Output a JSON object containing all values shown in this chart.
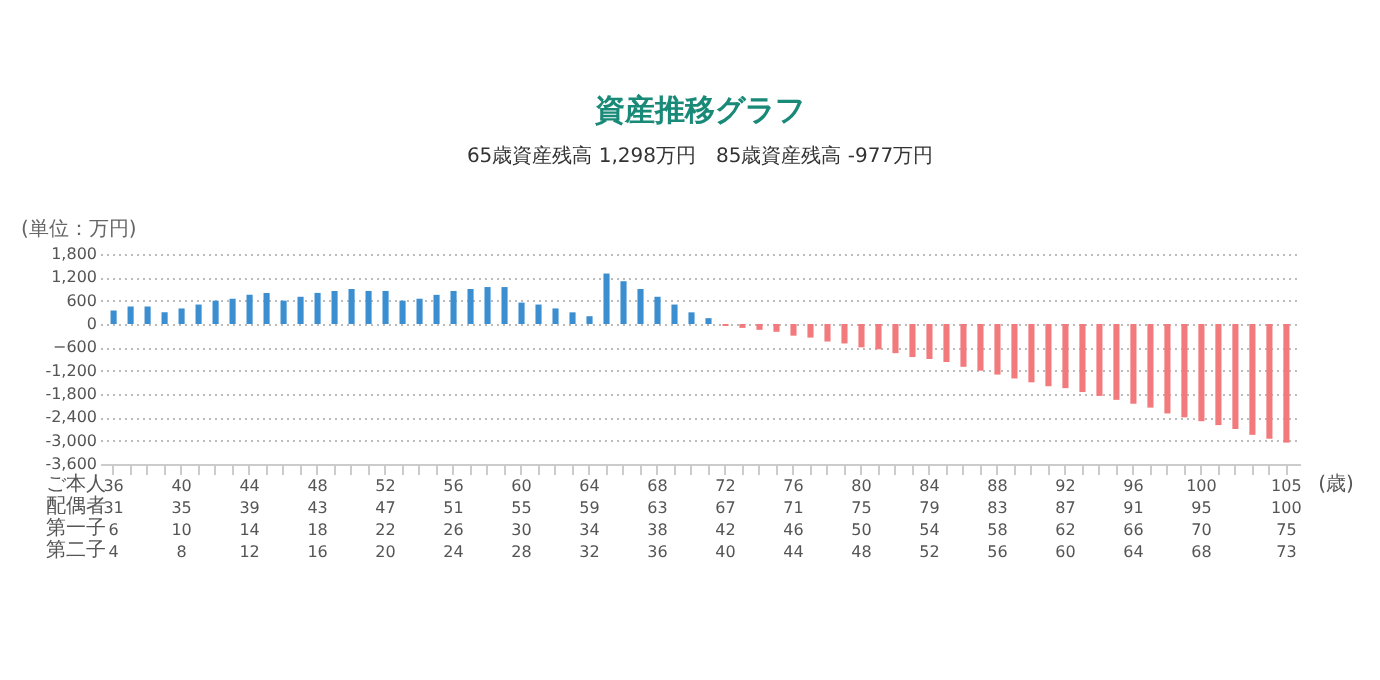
{
  "chart_data": {
    "type": "bar",
    "title": "資産推移グラフ",
    "subtitle": "65歳資産残高 1,298万円　85歳資産残高 -977万円",
    "ylabel": "(単位：万円)",
    "annotations": [
      "ご本人",
      "配偶者",
      "第一子",
      "第二子",
      "(歳)"
    ],
    "categories": [
      "36\n31\n6\n4",
      null,
      null,
      null,
      "40\n35\n10\n8",
      null,
      null,
      null,
      "44\n39\n14\n12",
      null,
      null,
      null,
      "48\n43\n18\n16",
      null,
      null,
      null,
      "52\n47\n22\n20",
      null,
      null,
      null,
      "56\n51\n26\n24",
      null,
      null,
      null,
      "60\n55\n30\n28",
      null,
      null,
      null,
      "64\n59\n34\n32",
      null,
      null,
      null,
      "68\n63\n38\n36",
      null,
      null,
      null,
      "72\n67\n42\n40",
      null,
      null,
      null,
      "76\n71\n46\n44",
      null,
      null,
      null,
      "80\n75\n50\n48",
      null,
      null,
      null,
      "84\n79\n54\n52",
      null,
      null,
      null,
      "88\n83\n58\n56",
      null,
      null,
      null,
      "92\n87\n62\n60",
      null,
      null,
      null,
      "96\n91\n66\n64",
      null,
      null,
      null,
      "100\n95\n70\n68",
      null,
      null,
      null,
      null,
      "105\n100\n75\n73"
    ],
    "series": [
      {
        "color": "#3b8fd0",
        "values": [
          350,
          450,
          450,
          300,
          400,
          500,
          600,
          650,
          750,
          800,
          600,
          700,
          800,
          850,
          900,
          850,
          850,
          600,
          650,
          750,
          850,
          900,
          950,
          950,
          550,
          500,
          400,
          300,
          200,
          1298,
          1100,
          900,
          700,
          500,
          300,
          150,
          null,
          null,
          null,
          null,
          null,
          null,
          null,
          null,
          null,
          null,
          null,
          null,
          null,
          null,
          null,
          null,
          null,
          null,
          null,
          null,
          null,
          null,
          null,
          null,
          null,
          null,
          null,
          null,
          null,
          null,
          null,
          null,
          null,
          null
        ]
      },
      {
        "color": "#f27a7d",
        "values": [
          null,
          null,
          null,
          null,
          null,
          null,
          null,
          null,
          null,
          null,
          null,
          null,
          null,
          null,
          null,
          null,
          null,
          null,
          null,
          null,
          null,
          null,
          null,
          null,
          null,
          null,
          null,
          null,
          null,
          null,
          null,
          null,
          null,
          null,
          null,
          null,
          -50,
          -100,
          -150,
          -200,
          -300,
          -350,
          -450,
          -500,
          -600,
          -650,
          -750,
          -850,
          -900,
          -977,
          -1100,
          -1200,
          -1300,
          -1400,
          -1500,
          -1600,
          -1650,
          -1750,
          -1850,
          -1950,
          -2050,
          -2150,
          -2300,
          -2400,
          -2500,
          -2600,
          -2700,
          -2850,
          -2950,
          -3050
        ]
      }
    ],
    "ylim": [
      -3600,
      1800
    ],
    "yticks": [
      {
        "value": 1800,
        "label": "1,800"
      },
      {
        "value": 1200,
        "label": "1,200"
      },
      600,
      0,
      -600,
      {
        "value": -1200,
        "label": "-1,200"
      },
      {
        "value": -1800,
        "label": "-1,800"
      },
      {
        "value": -2400,
        "label": "-2,400"
      },
      {
        "value": -3000,
        "label": "-3,000"
      },
      {
        "value": -3600,
        "label": "-3,600"
      }
    ],
    "grid": "y"
  }
}
